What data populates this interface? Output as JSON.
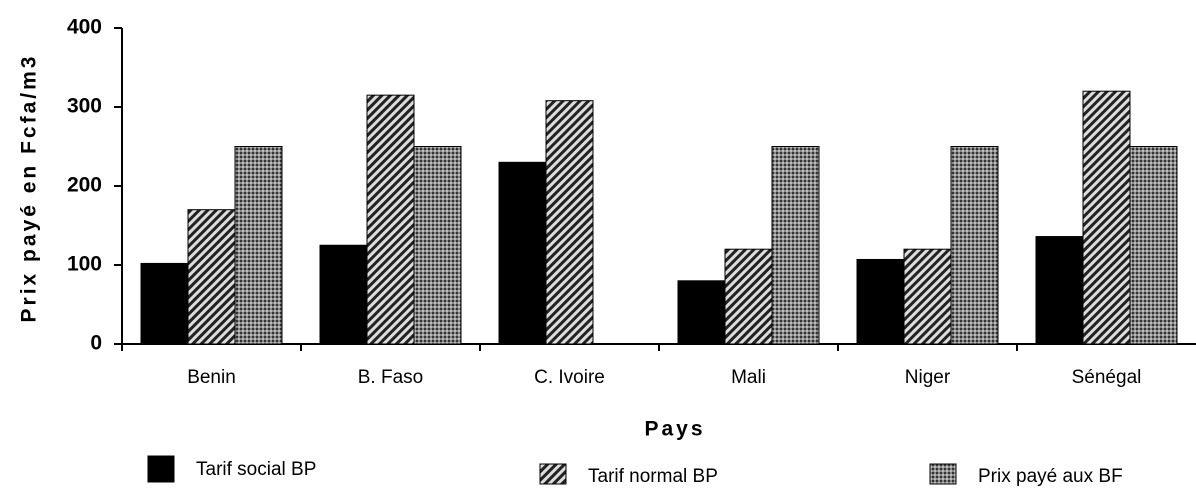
{
  "chart_data": {
    "type": "bar",
    "x_label": "Pays",
    "y_label": "Prix payé en Fcfa/m3",
    "categories": [
      "Benin",
      "B. Faso",
      "C.  Ivoire",
      "Mali",
      "Niger",
      "Sénégal"
    ],
    "series": [
      {
        "name": "Tarif social BP",
        "color": "#000000",
        "pattern": "solid",
        "values": [
          102,
          125,
          230,
          80,
          107,
          136
        ]
      },
      {
        "name": "Tarif normal BP",
        "color": "#222222",
        "pattern": "hatch",
        "values": [
          170,
          315,
          308,
          120,
          120,
          320
        ]
      },
      {
        "name": "Prix payé aux BF",
        "color": "#333333",
        "pattern": "dots",
        "values": [
          250,
          250,
          null,
          250,
          250,
          250
        ]
      }
    ],
    "ylim": [
      0,
      400
    ],
    "yticks": [
      0,
      100,
      200,
      300,
      400
    ],
    "grid": false
  }
}
